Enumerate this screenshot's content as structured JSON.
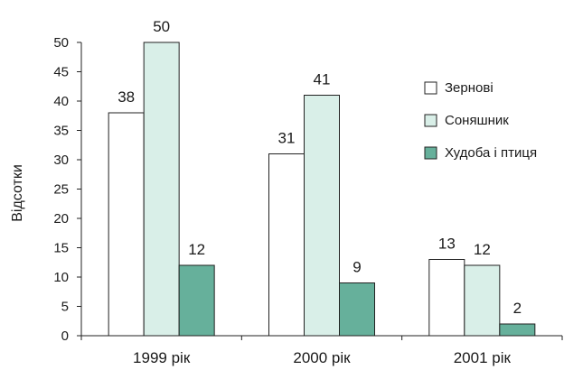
{
  "chart_data": {
    "type": "bar",
    "categories": [
      "1999 рік",
      "2000 рік",
      "2001 рік"
    ],
    "series": [
      {
        "name": "Зернові",
        "values": [
          38,
          31,
          13
        ],
        "color": "#ffffff"
      },
      {
        "name": "Соняшник",
        "values": [
          50,
          41,
          12
        ],
        "color": "#d9efe8"
      },
      {
        "name": "Худоба і птиця",
        "values": [
          12,
          9,
          2
        ],
        "color": "#66b09b"
      }
    ],
    "title": "",
    "xlabel": "",
    "ylabel": "Відсотки",
    "ylim": [
      0,
      50
    ],
    "yticks": [
      0,
      5,
      10,
      15,
      20,
      25,
      30,
      35,
      40,
      45,
      50
    ],
    "grid": false,
    "legend_position": "right",
    "data_labels": true
  }
}
